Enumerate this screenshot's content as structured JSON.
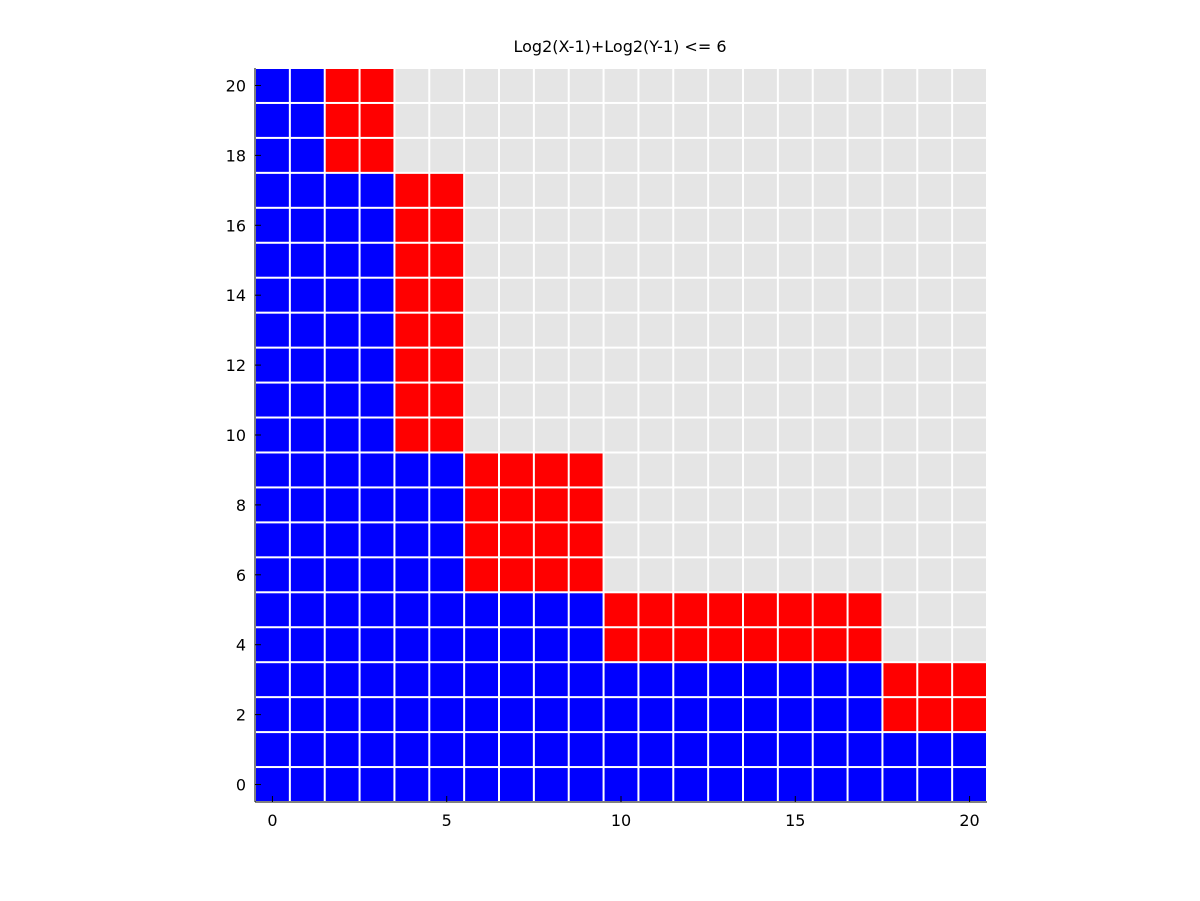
{
  "chart_data": {
    "type": "heatmap",
    "title": "Log2(X-1)+Log2(Y-1) <= 6",
    "xlabel": "",
    "ylabel": "",
    "xlim": [
      -0.5,
      20.5
    ],
    "ylim": [
      -0.5,
      20.5
    ],
    "x_ticks": [
      0,
      5,
      10,
      15,
      20
    ],
    "y_ticks": [
      0,
      2,
      4,
      6,
      8,
      10,
      12,
      14,
      16,
      18,
      20
    ],
    "grid": false,
    "colors": {
      "blue": "#0000ff",
      "red": "#ff0000",
      "gray": "#e5e5e5"
    },
    "row_order": "y from 0 (bottom) to 20 (top); each row lists cells for x = 0..20",
    "cells": [
      "BBBBBBBBBBBBBBBBBBBBB",
      "BBBBBBBBBBBBBBBBBBBBB",
      "BBBBBBBBBBBBBBBBBBRRR",
      "BBBBBBBBBBBBBBBBBBRRR",
      "BBBBBBBBBBRRRRRRRRGGG",
      "BBBBBBBBBBRRRRRRRRGGG",
      "BBBBBBRRRRGGGGGGGGGGG",
      "BBBBBBRRRRGGGGGGGGGGG",
      "BBBBBBRRRRGGGGGGGGGGG",
      "BBBBBBRRRRGGGGGGGGGGG",
      "BBBBRRGGGGGGGGGGGGGGG",
      "BBBBRRGGGGGGGGGGGGGGG",
      "BBBBRRGGGGGGGGGGGGGGG",
      "BBBBRRGGGGGGGGGGGGGGG",
      "BBBBRRGGGGGGGGGGGGGGG",
      "BBBBRRGGGGGGGGGGGGGGG",
      "BBBBRRGGGGGGGGGGGGGGG",
      "BBBBRRGGGGGGGGGGGGGGG",
      "BBRRGGGGGGGGGGGGGGGGG",
      "BBRRGGGGGGGGGGGGGGGGG",
      "BBRRGGGGGGGGGGGGGGGGG"
    ],
    "legend": {
      "B": "blue",
      "R": "red",
      "G": "gray"
    }
  }
}
